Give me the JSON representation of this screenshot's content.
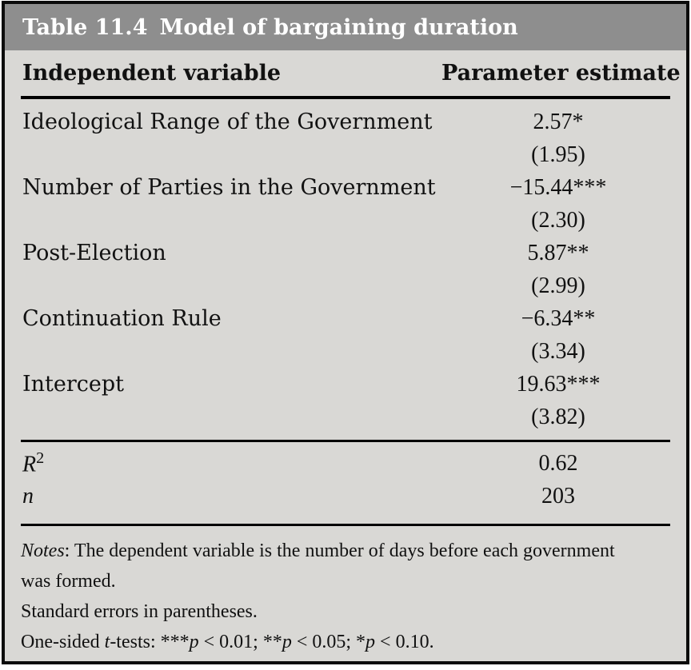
{
  "table": {
    "caption_label": "Table 11.4",
    "caption_title": "Model of bargaining duration",
    "col_headers": {
      "variable": "Independent variable",
      "estimate": "Parameter estimate"
    },
    "rows": [
      {
        "label": "Ideological Range of the Government",
        "estimate": "2.57*",
        "se": "(1.95)"
      },
      {
        "label": "Number of Parties in the Government",
        "estimate": "−15.44***",
        "se": "(2.30)"
      },
      {
        "label": "Post-Election",
        "estimate": "5.87**",
        "se": "(2.99)"
      },
      {
        "label": "Continuation Rule",
        "estimate": "−6.34**",
        "se": "(3.34)"
      },
      {
        "label": "Intercept",
        "estimate": "19.63***",
        "se": "(3.82)"
      }
    ],
    "stats": [
      {
        "label": "R",
        "label_sup": "2",
        "value": "0.62"
      },
      {
        "label": "n",
        "label_sup": "",
        "value": "203"
      }
    ]
  },
  "notes": {
    "line1_label": "Notes",
    "line1_rest": ": The dependent variable is the number of days before each government",
    "line2": "was formed.",
    "line3": "Standard errors in parentheses.",
    "ttests": {
      "prefix": "One-sided ",
      "t": "t",
      "tests": "-tests: ",
      "s3": "***",
      "p1": "p",
      "r1": " < 0.01; ",
      "s2": "**",
      "p2": "p",
      "r2": " < 0.05; ",
      "s1": "*",
      "p3": "p",
      "r3": " < 0.10."
    }
  },
  "colors": {
    "caption_bg": "#8e8e8e",
    "caption_text": "#ffffff",
    "body_bg": "#d9d8d5",
    "text": "#111111",
    "border": "#0b0b0b"
  }
}
